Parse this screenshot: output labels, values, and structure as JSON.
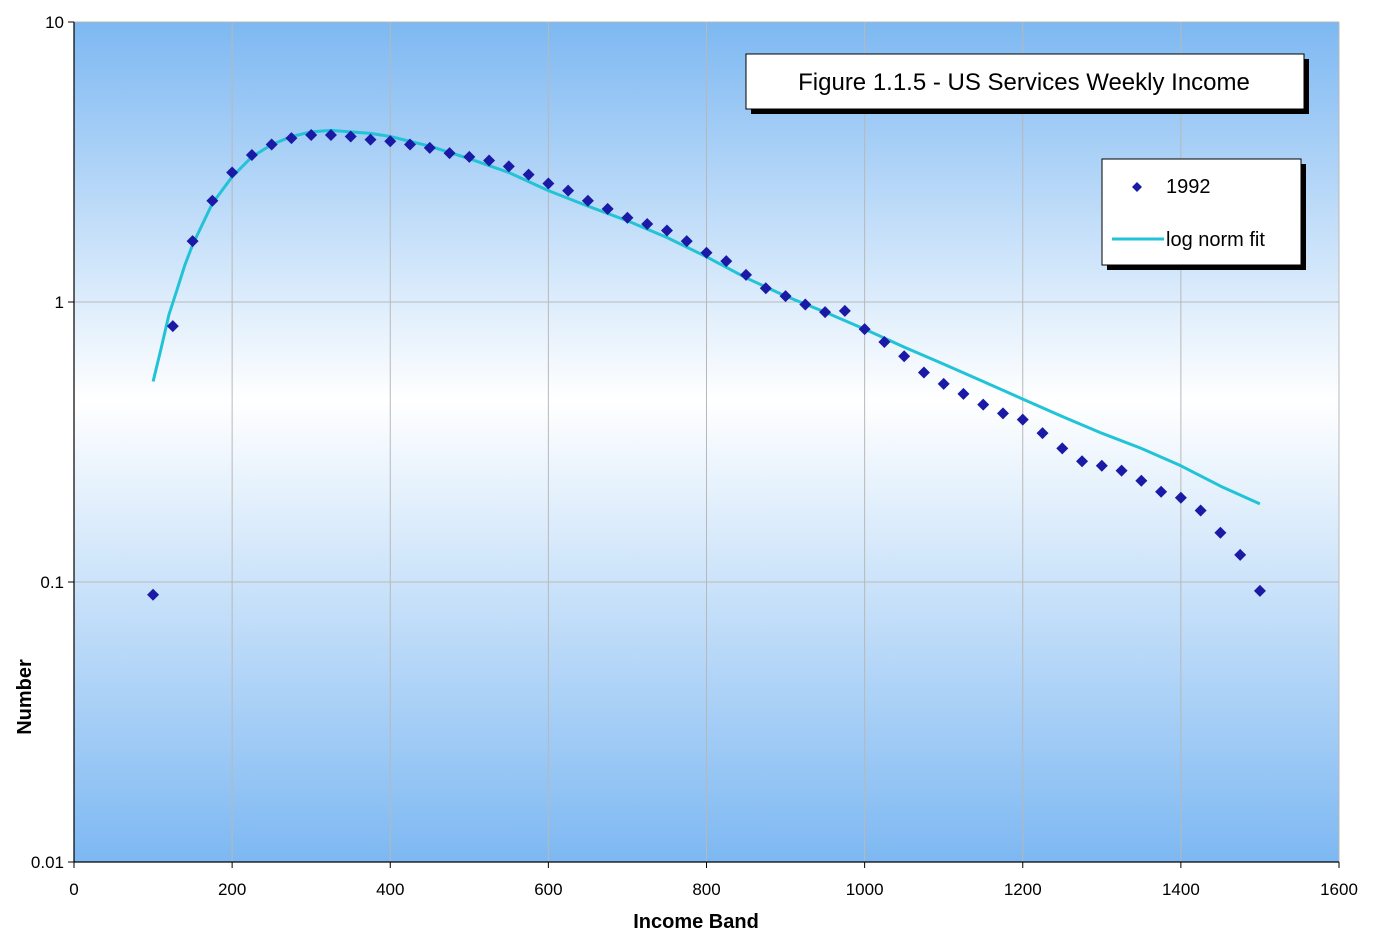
{
  "chart_data": {
    "type": "scatter",
    "title": "Figure 1.1.5 - US Services Weekly Income",
    "xlabel": "Income Band",
    "ylabel": "Number",
    "xlim": [
      0,
      1600
    ],
    "ylim": [
      0.01,
      10
    ],
    "yscale": "log",
    "grid": true,
    "legend_position": "top-right",
    "x_ticks": [
      "0",
      "200",
      "400",
      "600",
      "800",
      "1000",
      "1200",
      "1400",
      "1600"
    ],
    "y_ticks": [
      "0.01",
      "0.1",
      "1",
      "10"
    ],
    "colors": {
      "points": "#1a1aa6",
      "fit_line": "#22c3d6",
      "background_top": "#7db8f2",
      "background_mid": "#ffffff",
      "background_bottom": "#7db8f2",
      "grid": "#b8b8b8"
    },
    "series": [
      {
        "name": "1992",
        "kind": "points",
        "x": [
          100,
          125,
          150,
          175,
          200,
          225,
          250,
          275,
          300,
          325,
          350,
          375,
          400,
          425,
          450,
          475,
          500,
          525,
          550,
          575,
          600,
          625,
          650,
          675,
          700,
          725,
          750,
          775,
          800,
          825,
          850,
          875,
          900,
          925,
          950,
          975,
          1000,
          1025,
          1050,
          1075,
          1100,
          1125,
          1150,
          1175,
          1200,
          1225,
          1250,
          1275,
          1300,
          1325,
          1350,
          1375,
          1400,
          1425,
          1450,
          1475,
          1500
        ],
        "y": [
          0.09,
          0.82,
          1.65,
          2.3,
          2.9,
          3.35,
          3.65,
          3.85,
          3.95,
          3.95,
          3.9,
          3.8,
          3.75,
          3.65,
          3.55,
          3.4,
          3.3,
          3.2,
          3.05,
          2.85,
          2.65,
          2.5,
          2.3,
          2.15,
          2.0,
          1.9,
          1.8,
          1.65,
          1.5,
          1.4,
          1.25,
          1.12,
          1.05,
          0.98,
          0.92,
          0.93,
          0.8,
          0.72,
          0.64,
          0.56,
          0.51,
          0.47,
          0.43,
          0.4,
          0.38,
          0.34,
          0.3,
          0.27,
          0.26,
          0.25,
          0.23,
          0.21,
          0.2,
          0.18,
          0.15,
          0.125,
          0.093
        ]
      },
      {
        "name": "log norm fit",
        "kind": "line",
        "x": [
          100,
          110,
          120,
          130,
          140,
          150,
          175,
          200,
          225,
          250,
          275,
          300,
          325,
          350,
          375,
          400,
          450,
          500,
          550,
          600,
          650,
          700,
          750,
          800,
          850,
          900,
          950,
          1000,
          1050,
          1100,
          1150,
          1200,
          1250,
          1300,
          1350,
          1400,
          1450,
          1500
        ],
        "y": [
          0.52,
          0.68,
          0.9,
          1.1,
          1.35,
          1.6,
          2.25,
          2.8,
          3.3,
          3.65,
          3.9,
          4.05,
          4.1,
          4.05,
          4.0,
          3.9,
          3.6,
          3.25,
          2.9,
          2.5,
          2.2,
          1.95,
          1.7,
          1.45,
          1.22,
          1.05,
          0.92,
          0.8,
          0.69,
          0.6,
          0.52,
          0.45,
          0.39,
          0.34,
          0.3,
          0.26,
          0.22,
          0.19
        ]
      }
    ]
  }
}
